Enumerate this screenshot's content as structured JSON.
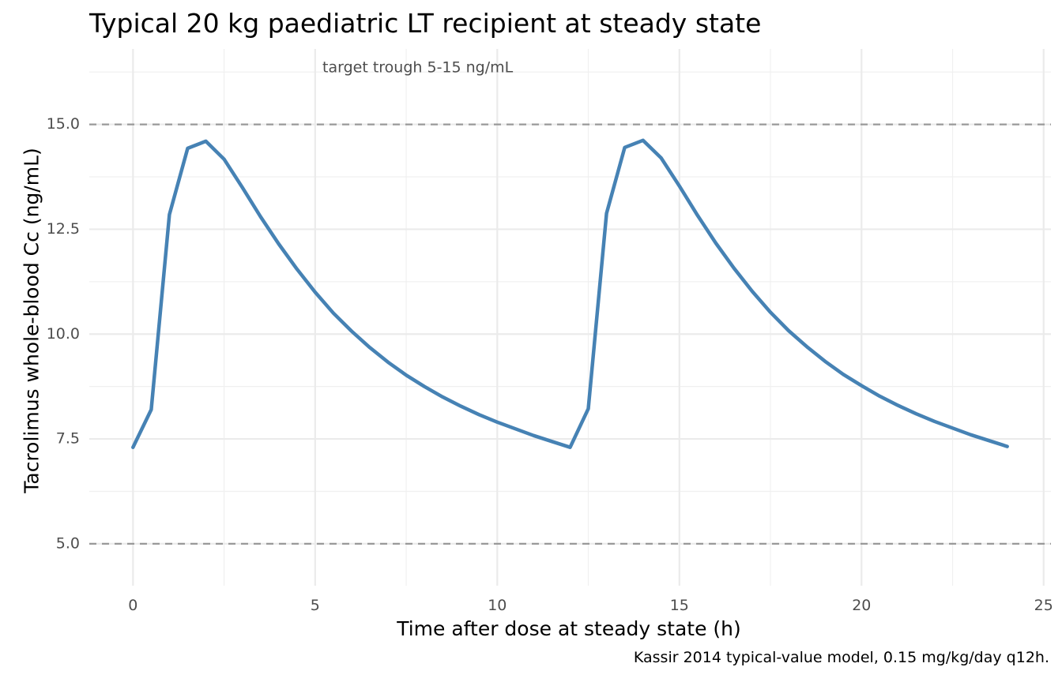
{
  "title": "Typical 20 kg paediatric LT recipient at steady state",
  "caption": "Kassir 2014 typical-value model, 0.15 mg/kg/day q12h.",
  "chart_data": {
    "type": "line",
    "title": "Typical 20 kg paediatric LT recipient at steady state",
    "xlabel": "Time after dose at steady state (h)",
    "ylabel": "Tacrolimus whole-blood Cc (ng/mL)",
    "xlim": [
      -1.2,
      25.2
    ],
    "ylim": [
      4.0,
      16.8
    ],
    "x_ticks": [
      0,
      5,
      10,
      15,
      20,
      25
    ],
    "x_tick_labels": [
      "0",
      "5",
      "10",
      "15",
      "20",
      "25"
    ],
    "y_ticks": [
      5.0,
      7.5,
      10.0,
      12.5,
      15.0
    ],
    "y_tick_labels": [
      "5.0",
      "7.5",
      "10.0",
      "12.5",
      "15.0"
    ],
    "grid": true,
    "legend": "none",
    "series": [
      {
        "color": "#4682B4",
        "x": [
          0,
          0.5,
          1,
          1.5,
          2,
          2.5,
          3,
          3.5,
          4,
          4.5,
          5,
          5.5,
          6,
          6.5,
          7,
          7.5,
          8,
          8.5,
          9,
          9.5,
          10,
          10.5,
          11,
          11.5,
          12,
          12.5,
          13,
          13.5,
          14,
          14.5,
          15,
          15.5,
          16,
          16.5,
          17,
          17.5,
          18,
          18.5,
          19,
          19.5,
          20,
          20.5,
          21,
          21.5,
          22,
          22.5,
          23,
          23.5,
          24
        ],
        "y": [
          7.3,
          8.2,
          12.85,
          14.43,
          14.6,
          14.17,
          13.5,
          12.8,
          12.15,
          11.55,
          11.0,
          10.5,
          10.07,
          9.68,
          9.33,
          9.02,
          8.75,
          8.5,
          8.28,
          8.08,
          7.9,
          7.74,
          7.58,
          7.44,
          7.3,
          8.22,
          12.88,
          14.45,
          14.62,
          14.2,
          13.53,
          12.83,
          12.17,
          11.57,
          11.02,
          10.52,
          10.08,
          9.7,
          9.35,
          9.04,
          8.77,
          8.52,
          8.3,
          8.1,
          7.92,
          7.76,
          7.6,
          7.46,
          7.32
        ]
      }
    ],
    "reference_lines": [
      {
        "axis": "y",
        "value": 5.0,
        "style": "dashed",
        "color": "#999999"
      },
      {
        "axis": "y",
        "value": 15.0,
        "style": "dashed",
        "color": "#999999"
      }
    ],
    "annotations": [
      {
        "text": "target trough 5-15 ng/mL",
        "x": 5.2,
        "y": 16.35
      }
    ]
  }
}
